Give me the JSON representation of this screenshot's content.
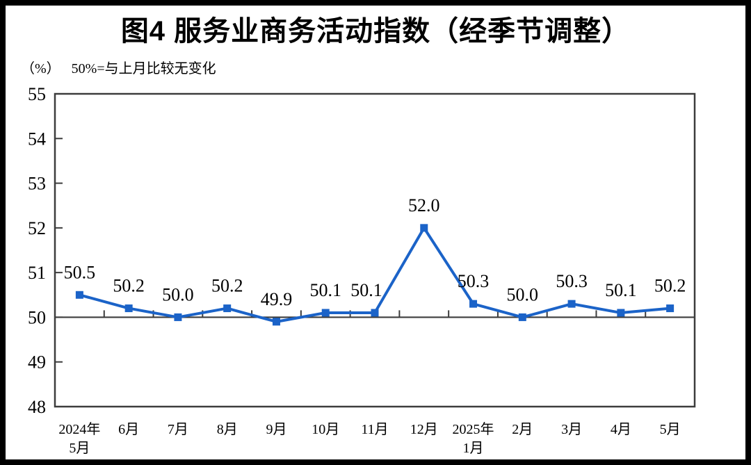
{
  "figure": {
    "title": "图4  服务业商务活动指数（经季节调整）",
    "y_axis_unit": "（%）",
    "reference_note": "50%=与上月比较无变化"
  },
  "colors": {
    "line": "#1b63c8",
    "marker": "#1b63c8",
    "frame": "#3c3c3c",
    "text": "#000000",
    "background": "#ffffff",
    "page_border": "#000000"
  },
  "chart_data": {
    "type": "line",
    "title": "图4  服务业商务活动指数（经季节调整）",
    "ylabel": "（%）",
    "xlabel": "",
    "categories": [
      "2024年\n5月",
      "6月",
      "7月",
      "8月",
      "9月",
      "10月",
      "11月",
      "12月",
      "2025年\n1月",
      "2月",
      "3月",
      "4月",
      "5月"
    ],
    "values": [
      50.5,
      50.2,
      50.0,
      50.2,
      49.9,
      50.1,
      50.1,
      52.0,
      50.3,
      50.0,
      50.3,
      50.1,
      50.2
    ],
    "data_labels": [
      "50.5",
      "50.2",
      "50.0",
      "50.2",
      "49.9",
      "50.1",
      "50.1",
      "52.0",
      "50.3",
      "50.0",
      "50.3",
      "50.1",
      "50.2"
    ],
    "ylim": [
      48,
      55
    ],
    "ytick_step": 1,
    "ytick_labels": [
      "48",
      "49",
      "50",
      "51",
      "52",
      "53",
      "54",
      "55"
    ],
    "reference_line": 50,
    "grid": false,
    "legend": "none",
    "marker": "square"
  }
}
